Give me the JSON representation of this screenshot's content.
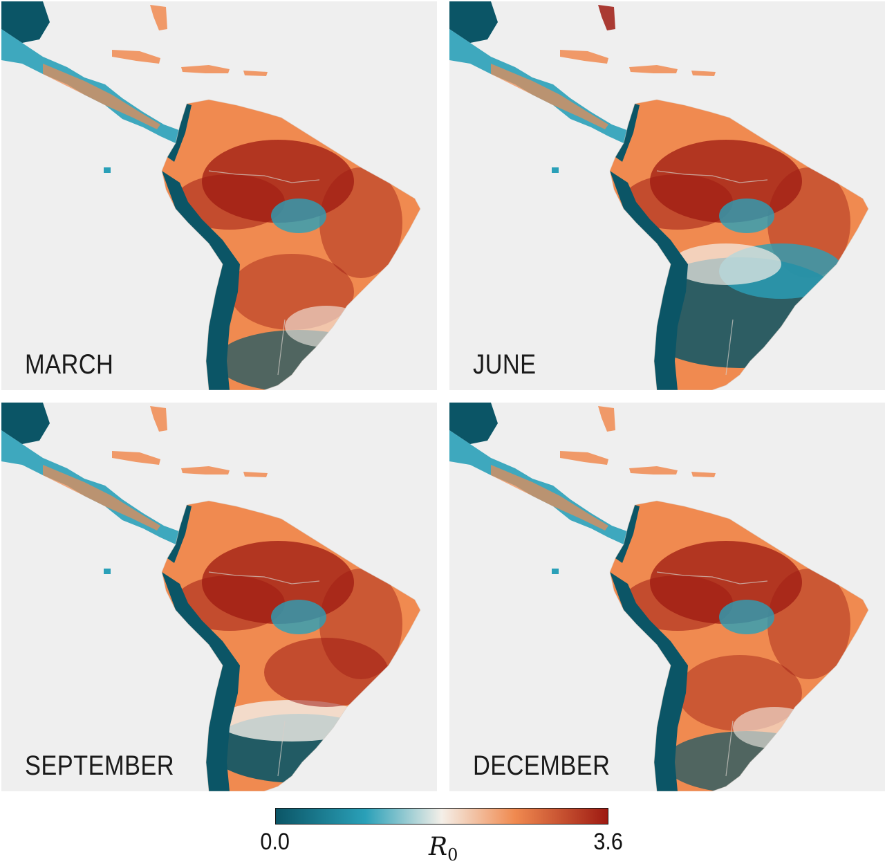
{
  "colors": {
    "sea": "#efefef",
    "low": "#0b5566",
    "mid_low": "#2aa0b8",
    "neutral": "#f4efe8",
    "mid_high": "#f08a50",
    "high": "#9e1a12"
  },
  "panels": [
    {
      "label": "MARCH",
      "r0_level": "high-south"
    },
    {
      "label": "JUNE",
      "r0_level": "low-south"
    },
    {
      "label": "SEPTEMBER",
      "r0_level": "high-central"
    },
    {
      "label": "DECEMBER",
      "r0_level": "high-south"
    }
  ],
  "colorbar": {
    "min_label": "0.0",
    "max_label": "3.6",
    "title_symbol": "R",
    "title_subscript": "0",
    "range": [
      0.0,
      3.6
    ]
  }
}
